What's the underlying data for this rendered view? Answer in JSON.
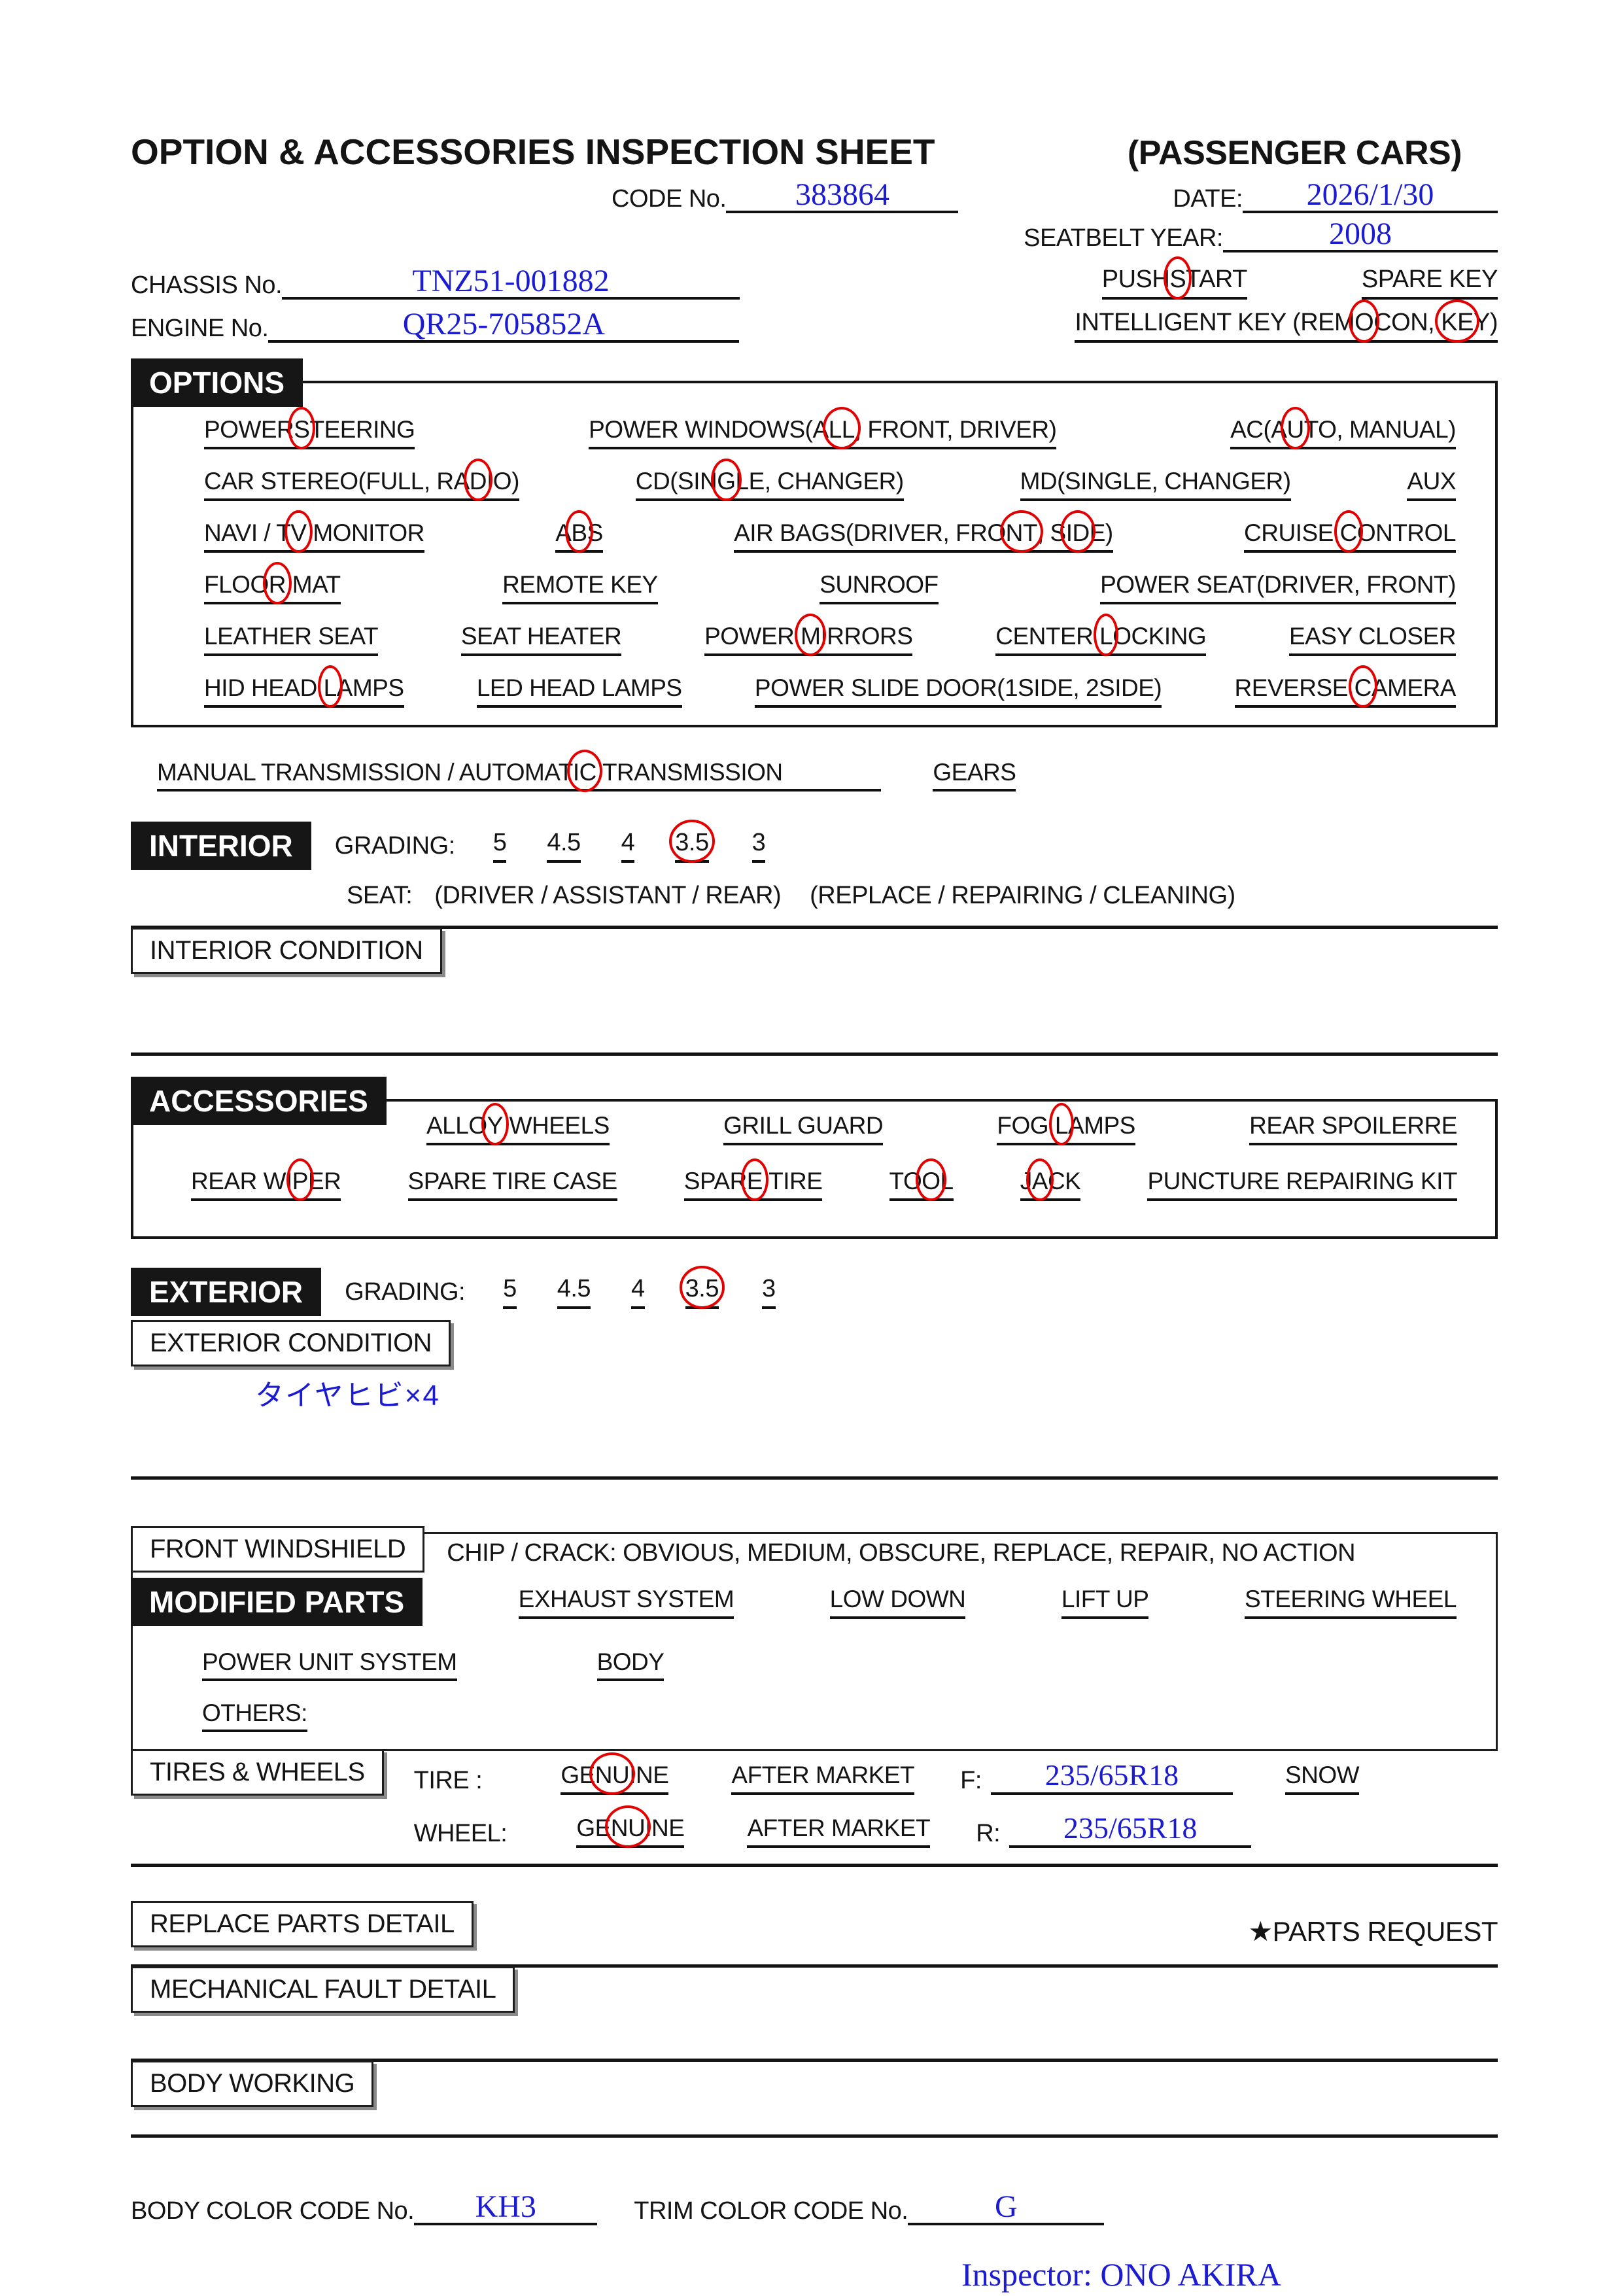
{
  "colors": {
    "ink": "#141414",
    "handwriting_blue": "#1b1bd1",
    "mark_red": "#e30000"
  },
  "header": {
    "title": "OPTION & ACCESSORIES INSPECTION SHEET",
    "subtitle": "(PASSENGER CARS)",
    "code_label": "CODE No.",
    "code_value": "383864",
    "date_label": "DATE:",
    "date_value": "2026/1/30",
    "seatbelt_label": "SEATBELT YEAR:",
    "seatbelt_value": "2008",
    "chassis_label": "CHASSIS No.",
    "chassis_value": "TNZ51-001882",
    "engine_label": "ENGINE No.",
    "engine_value": "QR25-705852A",
    "push_start": [
      {
        "t": "PUSH",
        "c": false
      },
      {
        "t": " S",
        "c": true
      },
      {
        "t": "TART",
        "c": false
      }
    ],
    "spare_key": "SPARE KEY",
    "intelligent_key": [
      {
        "t": "INTELLIGENT KEY (REM",
        "c": false
      },
      {
        "t": "O",
        "c": true
      },
      {
        "t": "CON, ",
        "c": false
      },
      {
        "t": "KE",
        "c": true
      },
      {
        "t": "Y)",
        "c": false
      }
    ]
  },
  "options": {
    "box_label": "OPTIONS",
    "r1c1": [
      {
        "t": "POWER",
        "c": false
      },
      {
        "t": " S",
        "c": true
      },
      {
        "t": "TEERING",
        "c": false
      }
    ],
    "r1c2": [
      {
        "t": "POWER WINDOWS(A",
        "c": false
      },
      {
        "t": "LL",
        "c": true
      },
      {
        "t": ", FRONT, DRIVER)",
        "c": false
      }
    ],
    "r1c3": [
      {
        "t": "AC(A",
        "c": false
      },
      {
        "t": "U",
        "c": true
      },
      {
        "t": "TO, MANUAL)",
        "c": false
      }
    ],
    "r2c1": [
      {
        "t": "CAR STEREO(FULL, RA",
        "c": false
      },
      {
        "t": "D",
        "c": true
      },
      {
        "t": "IO)",
        "c": false
      }
    ],
    "r2c2": [
      {
        "t": "CD(SIN",
        "c": false
      },
      {
        "t": "G",
        "c": true
      },
      {
        "t": "LE, CHANGER)",
        "c": false
      }
    ],
    "r2c3": "MD(SINGLE, CHANGER)",
    "r2c4": "AUX",
    "r3c1": [
      {
        "t": "NAVI / T",
        "c": false
      },
      {
        "t": "V",
        "c": true
      },
      {
        "t": " MONITOR",
        "c": false
      }
    ],
    "r3c2": [
      {
        "t": "A",
        "c": false
      },
      {
        "t": "B",
        "c": true
      },
      {
        "t": "S",
        "c": false
      }
    ],
    "r3c3": [
      {
        "t": "AIR BAGS(DRIVER, FRO",
        "c": false
      },
      {
        "t": "NT",
        "c": true
      },
      {
        "t": ", S",
        "c": false
      },
      {
        "t": "ID",
        "c": true
      },
      {
        "t": "E)",
        "c": false
      }
    ],
    "r3c4": [
      {
        "t": "CRUISE ",
        "c": false
      },
      {
        "t": "C",
        "c": true
      },
      {
        "t": "ONTROL",
        "c": false
      }
    ],
    "r4c1": [
      {
        "t": "FLOO",
        "c": false
      },
      {
        "t": "R",
        "c": true
      },
      {
        "t": " MAT",
        "c": false
      }
    ],
    "r4c2": "REMOTE KEY",
    "r4c3": "SUNROOF",
    "r4c4": "POWER SEAT(DRIVER, FRONT)",
    "r5c1": "LEATHER SEAT",
    "r5c2": "SEAT HEATER",
    "r5c3": [
      {
        "t": "POWER ",
        "c": false
      },
      {
        "t": "M",
        "c": true
      },
      {
        "t": "IRRORS",
        "c": false
      }
    ],
    "r5c4": [
      {
        "t": "CENTER ",
        "c": false
      },
      {
        "t": "L",
        "c": true
      },
      {
        "t": "OCKING",
        "c": false
      }
    ],
    "r5c5": "EASY CLOSER",
    "r6c1": [
      {
        "t": "HID HEAD ",
        "c": false
      },
      {
        "t": "L",
        "c": true
      },
      {
        "t": "AMPS",
        "c": false
      }
    ],
    "r6c2": "LED HEAD LAMPS",
    "r6c3": "POWER SLIDE DOOR(1SIDE,  2SIDE)",
    "r6c4": [
      {
        "t": "REVERSE ",
        "c": false
      },
      {
        "t": "C",
        "c": true
      },
      {
        "t": "AMERA",
        "c": false
      }
    ]
  },
  "transmission": {
    "seg": [
      {
        "t": "MANUAL TRANSMISSION / AUTOMAT",
        "c": false
      },
      {
        "t": "IC",
        "c": true
      },
      {
        "t": " TRANSMISSION",
        "c": false
      }
    ],
    "gears_label": "GEARS"
  },
  "interior": {
    "label": "INTERIOR",
    "grading_label": "GRADING:",
    "g1": [
      {
        "t": "5",
        "c": false
      }
    ],
    "g2": [
      {
        "t": "4.5",
        "c": false
      }
    ],
    "g3": [
      {
        "t": "4",
        "c": false
      }
    ],
    "g4": [
      {
        "t": "3.5",
        "c": true
      }
    ],
    "g5": [
      {
        "t": "3",
        "c": false
      }
    ],
    "seat_label": "SEAT:",
    "seat_opts1": "(DRIVER / ASSISTANT / REAR)",
    "seat_opts2": "(REPLACE / REPAIRING / CLEANING)",
    "condition_label": "INTERIOR CONDITION"
  },
  "accessories": {
    "box_label": "ACCESSORIES",
    "r1c1": [
      {
        "t": "ALLO",
        "c": false
      },
      {
        "t": "Y",
        "c": true
      },
      {
        "t": " WHEELS",
        "c": false
      }
    ],
    "r1c2": "GRILL GUARD",
    "r1c3": [
      {
        "t": "FOG ",
        "c": false
      },
      {
        "t": "L",
        "c": true
      },
      {
        "t": "AMPS",
        "c": false
      }
    ],
    "r1c4": "REAR SPOILERRE",
    "r2c1": [
      {
        "t": "REAR WI",
        "c": false
      },
      {
        "t": "P",
        "c": true
      },
      {
        "t": "ER",
        "c": false
      }
    ],
    "r2c2": "SPARE TIRE CASE",
    "r2c3": [
      {
        "t": "SPAR",
        "c": false
      },
      {
        "t": "E",
        "c": true
      },
      {
        "t": " TIRE",
        "c": false
      }
    ],
    "r2c4": [
      {
        "t": "TO",
        "c": false
      },
      {
        "t": "O",
        "c": true
      },
      {
        "t": "L",
        "c": false
      }
    ],
    "r2c5": [
      {
        "t": "J",
        "c": false
      },
      {
        "t": "A",
        "c": true
      },
      {
        "t": "CK",
        "c": false
      }
    ],
    "r2c6": "PUNCTURE REPAIRING KIT"
  },
  "exterior": {
    "label": "EXTERIOR",
    "grading_label": "GRADING:",
    "g1": [
      {
        "t": "5",
        "c": false
      }
    ],
    "g2": [
      {
        "t": "4.5",
        "c": false
      }
    ],
    "g3": [
      {
        "t": "4",
        "c": false
      }
    ],
    "g4": [
      {
        "t": "3.5",
        "c": true
      }
    ],
    "g5": [
      {
        "t": "3",
        "c": false
      }
    ],
    "condition_label": "EXTERIOR CONDITION",
    "condition_note": "タイヤヒビ×4"
  },
  "windshield": {
    "label": "FRONT WINDSHIELD",
    "chip_crack": "CHIP / CRACK:  OBVIOUS,  MEDIUM,  OBSCURE,  REPLACE,  REPAIR,  NO ACTION",
    "modified_label": "MODIFIED PARTS",
    "m1": "EXHAUST SYSTEM",
    "m2": "LOW DOWN",
    "m3": "LIFT UP",
    "m4": "STEERING WHEEL",
    "m5": "POWER UNIT SYSTEM",
    "m6": "BODY",
    "others_label": "OTHERS:"
  },
  "tires": {
    "label": "TIRES & WHEELS",
    "tire_label": "TIRE :",
    "wheel_label": "WHEEL:",
    "genuine_tire": [
      {
        "t": "GE",
        "c": false
      },
      {
        "t": "NU",
        "c": true
      },
      {
        "t": "INE",
        "c": false
      }
    ],
    "genuine_wheel": [
      {
        "t": "GE",
        "c": false
      },
      {
        "t": "NU",
        "c": true
      },
      {
        "t": "INE",
        "c": false
      }
    ],
    "after_market_1": "AFTER MARKET",
    "after_market_2": "AFTER MARKET",
    "f_label": "F:",
    "f_value": "235/65R18",
    "r_label": "R:",
    "r_value": "235/65R18",
    "snow_label": "SNOW"
  },
  "bottom": {
    "replace_parts_label": "REPLACE PARTS DETAIL",
    "parts_request_star": "★",
    "parts_request_label": "PARTS REQUEST",
    "mechanical_fault_label": "MECHANICAL FAULT DETAIL",
    "body_working_label": "BODY WORKING",
    "body_color_label": "BODY COLOR CODE No.",
    "body_color_value": "KH3",
    "trim_color_label": "TRIM COLOR CODE No.",
    "trim_color_value": "G",
    "inspector": "Inspector:  ONO AKIRA"
  }
}
